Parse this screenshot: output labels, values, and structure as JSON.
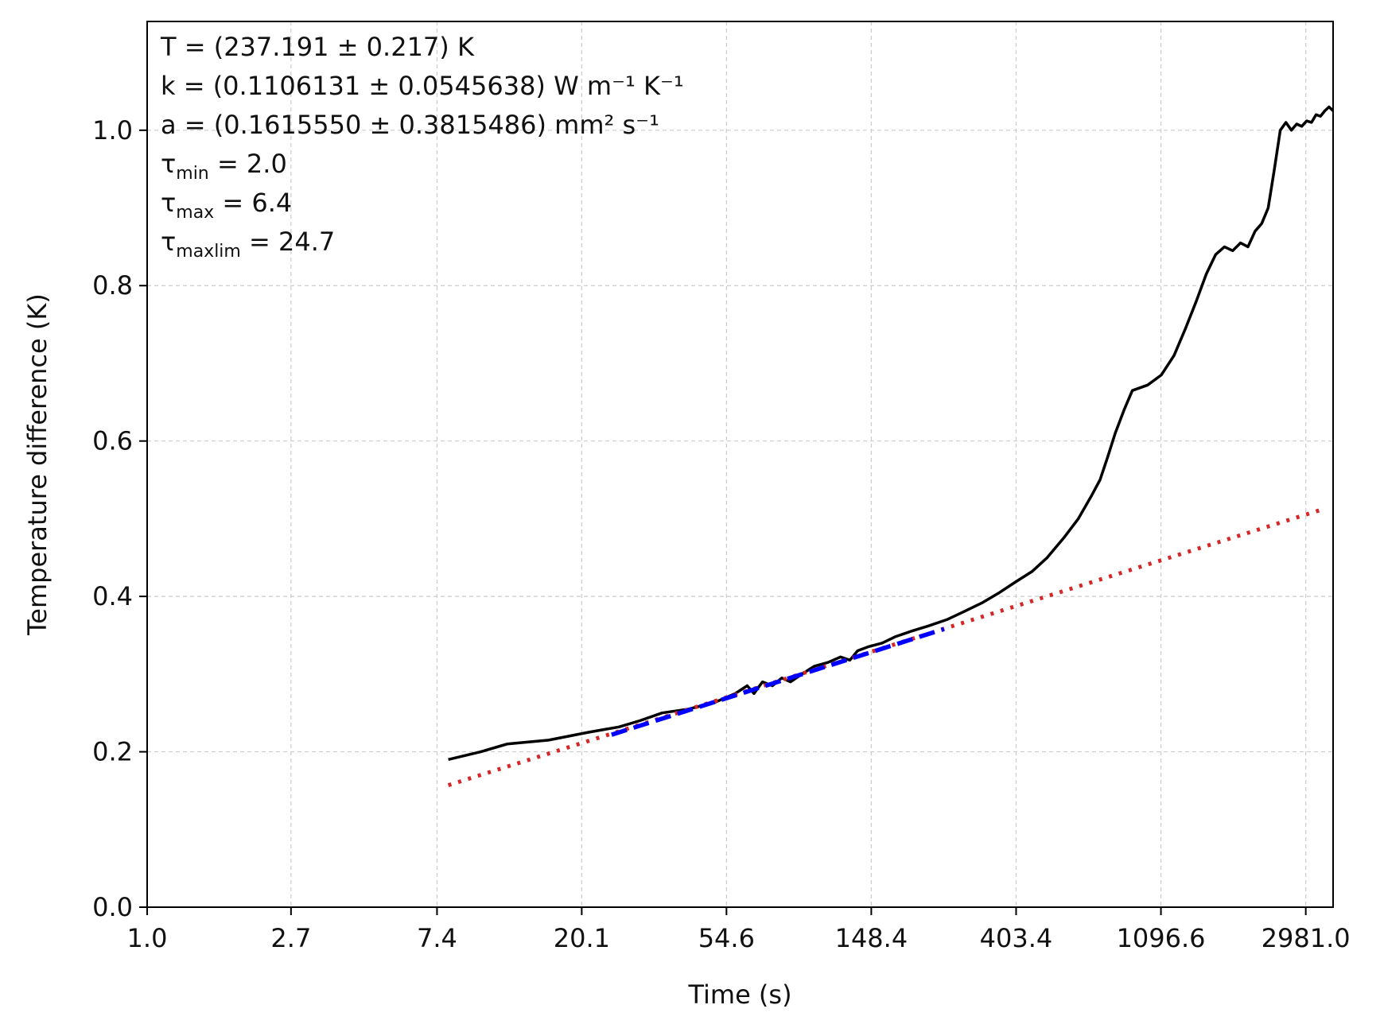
{
  "chart_data": {
    "type": "line",
    "title": "",
    "xlabel": "Time (s)",
    "ylabel": "Temperature difference (K)",
    "xscale": "log",
    "xlim": [
      1.0,
      3600
    ],
    "ylim": [
      0.0,
      1.14
    ],
    "grid": true,
    "x_ticks": [
      1.0,
      2.7,
      7.4,
      20.1,
      54.6,
      148.4,
      403.4,
      1096.6,
      2981.0
    ],
    "x_tick_labels": [
      "1.0",
      "2.7",
      "7.4",
      "20.1",
      "54.6",
      "148.4",
      "403.4",
      "1096.6",
      "2981.0"
    ],
    "y_ticks": [
      0.0,
      0.2,
      0.4,
      0.6,
      0.8,
      1.0
    ],
    "y_tick_labels": [
      "0.0",
      "0.2",
      "0.4",
      "0.6",
      "0.8",
      "1.0"
    ],
    "annotations": [
      "T = (237.191 ± 0.217) K",
      "k = (0.1106131 ± 0.0545638) W m⁻¹ K⁻¹",
      "a = (0.1615550 ± 0.3815486) mm² s⁻¹",
      "τmin = 2.0",
      "τmax = 6.4",
      "τmaxlim = 24.7"
    ],
    "series": [
      {
        "style": "solid",
        "color": "#000000",
        "x": [
          8,
          10,
          12,
          16,
          21,
          26,
          30,
          35,
          42,
          50,
          58,
          63,
          66,
          70,
          75,
          80,
          85,
          92,
          100,
          110,
          120,
          128,
          135,
          145,
          160,
          175,
          195,
          220,
          250,
          280,
          320,
          360,
          400,
          450,
          500,
          560,
          620,
          680,
          720,
          760,
          800,
          850,
          900,
          1000,
          1100,
          1200,
          1300,
          1400,
          1500,
          1600,
          1700,
          1800,
          1900,
          2000,
          2100,
          2200,
          2300,
          2400,
          2500,
          2600,
          2700,
          2800,
          2900,
          3000,
          3100,
          3200,
          3300,
          3400,
          3500,
          3600
        ],
        "y": [
          0.19,
          0.2,
          0.21,
          0.215,
          0.225,
          0.232,
          0.24,
          0.25,
          0.255,
          0.263,
          0.275,
          0.285,
          0.275,
          0.29,
          0.285,
          0.295,
          0.29,
          0.3,
          0.31,
          0.315,
          0.322,
          0.318,
          0.33,
          0.335,
          0.34,
          0.348,
          0.355,
          0.362,
          0.37,
          0.38,
          0.392,
          0.405,
          0.418,
          0.432,
          0.45,
          0.475,
          0.5,
          0.53,
          0.55,
          0.58,
          0.61,
          0.64,
          0.665,
          0.672,
          0.685,
          0.71,
          0.745,
          0.78,
          0.815,
          0.84,
          0.85,
          0.845,
          0.855,
          0.85,
          0.87,
          0.88,
          0.9,
          0.95,
          1.0,
          1.01,
          1.0,
          1.008,
          1.005,
          1.012,
          1.01,
          1.02,
          1.018,
          1.025,
          1.03,
          1.025
        ]
      },
      {
        "style": "dotted",
        "color": "#d62728",
        "x": [
          8,
          3400
        ],
        "y": [
          0.157,
          0.513
        ]
      },
      {
        "style": "dashed",
        "color": "#0000ff",
        "x": [
          24.7,
          245
        ],
        "y": [
          0.222,
          0.358
        ]
      }
    ]
  }
}
